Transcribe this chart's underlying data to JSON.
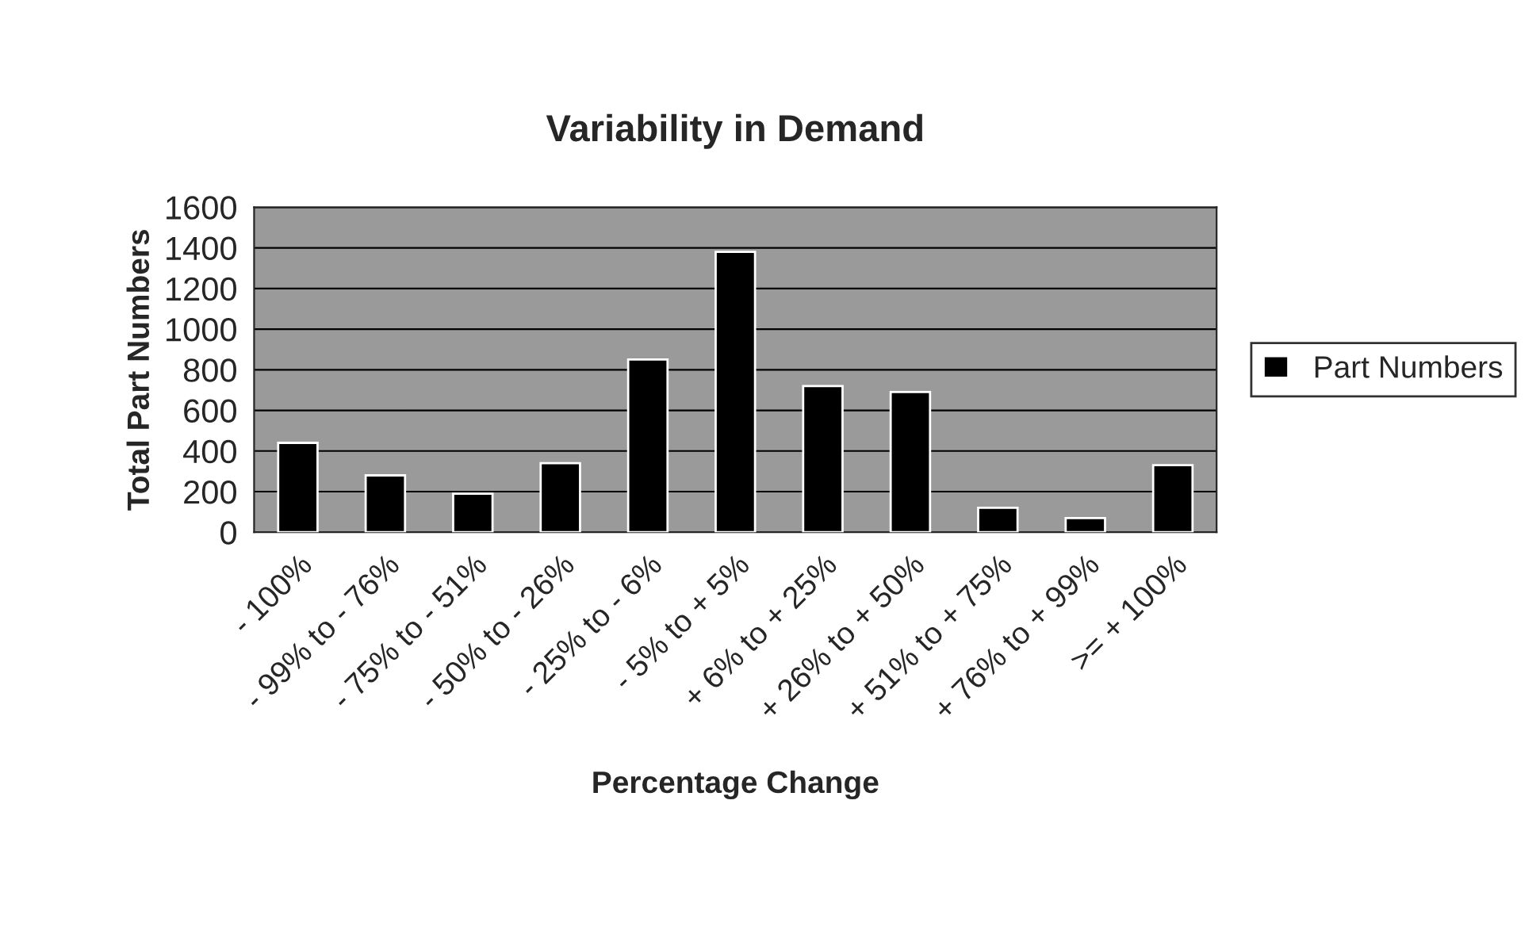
{
  "chart_data": {
    "type": "bar",
    "title": "Variability in Demand",
    "xlabel": "Percentage Change",
    "ylabel": "Total Part Numbers",
    "categories": [
      "- 100%",
      "- 99% to - 76%",
      "- 75% to - 51%",
      "- 50% to - 26%",
      "- 25% to - 6%",
      "- 5% to + 5%",
      "+ 6% to + 25%",
      "+ 26% to + 50%",
      "+ 51% to + 75%",
      "+ 76% to + 99%",
      ">= + 100%"
    ],
    "series": [
      {
        "name": "Part Numbers",
        "color": "#000000",
        "values": [
          440,
          280,
          190,
          340,
          850,
          1380,
          720,
          690,
          120,
          70,
          330
        ]
      }
    ],
    "ylim": [
      0,
      1600
    ],
    "yticks": [
      0,
      200,
      400,
      600,
      800,
      1000,
      1200,
      1400,
      1600
    ],
    "grid": "y",
    "legend": "right"
  }
}
